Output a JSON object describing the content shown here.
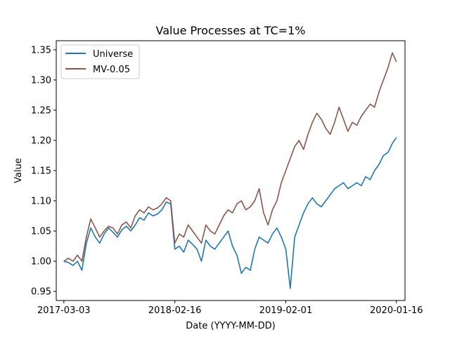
{
  "chart_data": {
    "type": "line",
    "title": "Value Processes at TC=1%",
    "xlabel": "Date (YYYY-MM-DD)",
    "ylabel": "Value",
    "grid": false,
    "legend_position": "top-left",
    "x_type": "time",
    "x_range": [
      "2017-02-07",
      "2020-02-12"
    ],
    "ylim": [
      0.935,
      1.365
    ],
    "x_ticks": [
      "2017-03-03",
      "2018-02-16",
      "2019-02-01",
      "2020-01-16"
    ],
    "y_ticks": [
      0.95,
      1.0,
      1.05,
      1.1,
      1.15,
      1.2,
      1.25,
      1.3,
      1.35
    ],
    "series": [
      {
        "name": "Universe",
        "color": "#1f77b4",
        "x": [
          "2017-03-03",
          "2017-03-17",
          "2017-04-01",
          "2017-04-15",
          "2017-04-29",
          "2017-05-13",
          "2017-05-27",
          "2017-06-10",
          "2017-06-24",
          "2017-07-08",
          "2017-07-22",
          "2017-08-05",
          "2017-08-19",
          "2017-09-02",
          "2017-09-16",
          "2017-09-30",
          "2017-10-14",
          "2017-10-28",
          "2017-11-11",
          "2017-11-25",
          "2017-12-09",
          "2017-12-23",
          "2018-01-06",
          "2018-01-20",
          "2018-02-03",
          "2018-02-16",
          "2018-03-02",
          "2018-03-16",
          "2018-03-30",
          "2018-04-13",
          "2018-04-27",
          "2018-05-11",
          "2018-05-25",
          "2018-06-08",
          "2018-06-22",
          "2018-07-06",
          "2018-07-20",
          "2018-08-03",
          "2018-08-17",
          "2018-08-31",
          "2018-09-14",
          "2018-09-28",
          "2018-10-12",
          "2018-10-26",
          "2018-11-09",
          "2018-11-23",
          "2018-12-07",
          "2018-12-21",
          "2019-01-04",
          "2019-01-18",
          "2019-02-01",
          "2019-02-15",
          "2019-03-01",
          "2019-03-15",
          "2019-03-29",
          "2019-04-12",
          "2019-04-26",
          "2019-05-10",
          "2019-05-24",
          "2019-06-07",
          "2019-06-21",
          "2019-07-05",
          "2019-07-19",
          "2019-08-02",
          "2019-08-16",
          "2019-08-30",
          "2019-09-13",
          "2019-09-27",
          "2019-10-11",
          "2019-10-25",
          "2019-11-08",
          "2019-11-22",
          "2019-12-06",
          "2019-12-20",
          "2020-01-03",
          "2020-01-16"
        ],
        "values": [
          1.0,
          0.998,
          0.993,
          1.0,
          0.985,
          1.03,
          1.055,
          1.04,
          1.03,
          1.045,
          1.055,
          1.048,
          1.04,
          1.052,
          1.058,
          1.05,
          1.06,
          1.072,
          1.068,
          1.08,
          1.075,
          1.078,
          1.085,
          1.098,
          1.095,
          1.02,
          1.025,
          1.015,
          1.035,
          1.028,
          1.02,
          1.0,
          1.035,
          1.025,
          1.02,
          1.03,
          1.04,
          1.05,
          1.025,
          1.01,
          0.98,
          0.99,
          0.985,
          1.02,
          1.04,
          1.035,
          1.03,
          1.045,
          1.055,
          1.04,
          1.02,
          0.955,
          1.04,
          1.06,
          1.08,
          1.095,
          1.105,
          1.095,
          1.09,
          1.1,
          1.11,
          1.12,
          1.125,
          1.13,
          1.12,
          1.125,
          1.13,
          1.125,
          1.14,
          1.135,
          1.15,
          1.16,
          1.175,
          1.18,
          1.195,
          1.205
        ]
      },
      {
        "name": "MV-0.05",
        "color": "#8c564b",
        "x": [
          "2017-03-03",
          "2017-03-17",
          "2017-04-01",
          "2017-04-15",
          "2017-04-29",
          "2017-05-13",
          "2017-05-27",
          "2017-06-10",
          "2017-06-24",
          "2017-07-08",
          "2017-07-22",
          "2017-08-05",
          "2017-08-19",
          "2017-09-02",
          "2017-09-16",
          "2017-09-30",
          "2017-10-14",
          "2017-10-28",
          "2017-11-11",
          "2017-11-25",
          "2017-12-09",
          "2017-12-23",
          "2018-01-06",
          "2018-01-20",
          "2018-02-03",
          "2018-02-16",
          "2018-03-02",
          "2018-03-16",
          "2018-03-30",
          "2018-04-13",
          "2018-04-27",
          "2018-05-11",
          "2018-05-25",
          "2018-06-08",
          "2018-06-22",
          "2018-07-06",
          "2018-07-20",
          "2018-08-03",
          "2018-08-17",
          "2018-08-31",
          "2018-09-14",
          "2018-09-28",
          "2018-10-12",
          "2018-10-26",
          "2018-11-09",
          "2018-11-23",
          "2018-12-07",
          "2018-12-21",
          "2019-01-04",
          "2019-01-18",
          "2019-02-01",
          "2019-02-15",
          "2019-03-01",
          "2019-03-15",
          "2019-03-29",
          "2019-04-12",
          "2019-04-26",
          "2019-05-10",
          "2019-05-24",
          "2019-06-07",
          "2019-06-21",
          "2019-07-05",
          "2019-07-19",
          "2019-08-02",
          "2019-08-16",
          "2019-08-30",
          "2019-09-13",
          "2019-09-27",
          "2019-10-11",
          "2019-10-25",
          "2019-11-08",
          "2019-11-22",
          "2019-12-06",
          "2019-12-20",
          "2020-01-03",
          "2020-01-16"
        ],
        "values": [
          1.0,
          1.005,
          1.0,
          1.01,
          1.0,
          1.04,
          1.07,
          1.055,
          1.04,
          1.05,
          1.058,
          1.055,
          1.045,
          1.06,
          1.065,
          1.055,
          1.075,
          1.085,
          1.08,
          1.09,
          1.085,
          1.088,
          1.095,
          1.105,
          1.1,
          1.03,
          1.045,
          1.04,
          1.06,
          1.05,
          1.04,
          1.03,
          1.06,
          1.05,
          1.045,
          1.06,
          1.075,
          1.085,
          1.08,
          1.095,
          1.1,
          1.085,
          1.09,
          1.1,
          1.12,
          1.08,
          1.06,
          1.085,
          1.1,
          1.13,
          1.15,
          1.17,
          1.19,
          1.2,
          1.185,
          1.21,
          1.23,
          1.245,
          1.235,
          1.22,
          1.21,
          1.23,
          1.255,
          1.235,
          1.215,
          1.23,
          1.225,
          1.24,
          1.25,
          1.26,
          1.255,
          1.28,
          1.3,
          1.32,
          1.345,
          1.33
        ]
      }
    ]
  }
}
